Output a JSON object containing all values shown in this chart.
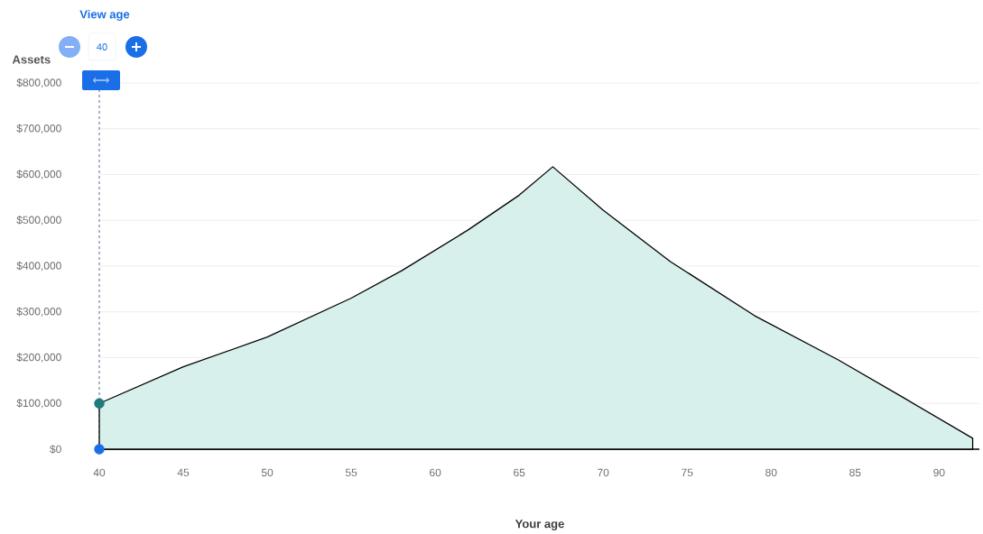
{
  "chart_data": {
    "type": "area",
    "xlabel": "Your age",
    "ylabel": "Assets",
    "annotations": [
      "View age",
      "40"
    ],
    "series": [
      {
        "color": "#d7f0ec",
        "x": [
          40,
          45,
          50,
          55,
          58,
          62,
          65,
          67,
          70,
          74,
          79,
          84,
          88,
          92
        ],
        "values": [
          100000,
          180000,
          245000,
          330000,
          390000,
          480000,
          555000,
          617000,
          522000,
          410000,
          292000,
          195000,
          110000,
          24000
        ]
      },
      {
        "type": "scatter",
        "marker": "circle",
        "x": [
          40,
          40
        ],
        "values": [
          100000,
          0
        ],
        "colors": [
          "#1f7a80",
          "#1a6ee8"
        ]
      }
    ],
    "xlim": [
      40,
      92.4
    ],
    "ylim": [
      0,
      800000
    ],
    "xticks": [
      40,
      45,
      50,
      55,
      60,
      65,
      70,
      75,
      80,
      85,
      90
    ],
    "yticks": [
      {
        "value": 0,
        "label": "$0"
      },
      {
        "value": 100000,
        "label": "$100,000"
      },
      {
        "value": 200000,
        "label": "$200,000"
      },
      {
        "value": 300000,
        "label": "$300,000"
      },
      {
        "value": 400000,
        "label": "$400,000"
      },
      {
        "value": 500000,
        "label": "$500,000"
      },
      {
        "value": 600000,
        "label": "$600,000"
      },
      {
        "value": 700000,
        "label": "$700,000"
      },
      {
        "value": 800000,
        "label": "$800,000"
      }
    ],
    "grid": "y",
    "ref_lines": [
      {
        "axis": "x",
        "value": 40,
        "color": "#5a6e8c",
        "line_style": "dashed"
      }
    ]
  }
}
